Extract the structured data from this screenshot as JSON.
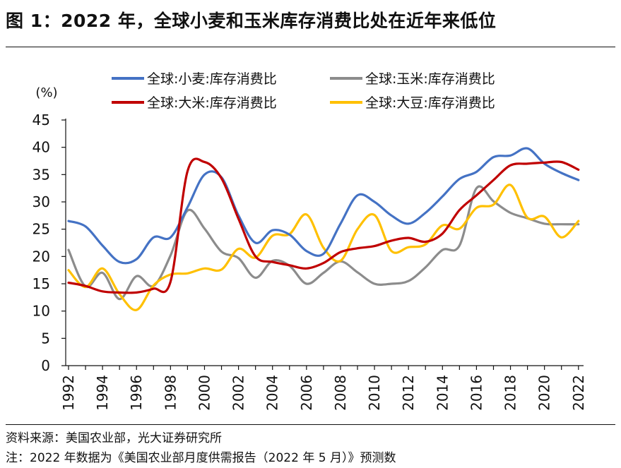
{
  "header": {
    "title": "图 1：2022 年，全球小麦和玉米库存消费比处在近年来低位"
  },
  "footer": {
    "source": "资料来源：美国农业部，光大证券研究所",
    "note": "注：2022 年数据为《美国农业部月度供需报告（2022 年 5 月）》预测数"
  },
  "chart_data": {
    "type": "line",
    "unit_label": "(%)",
    "ylim": [
      0,
      45
    ],
    "yticks": [
      0,
      5,
      10,
      15,
      20,
      25,
      30,
      35,
      40,
      45
    ],
    "xlim": [
      1992,
      2022
    ],
    "xticks": [
      "1992",
      "1994",
      "1996",
      "1998",
      "2000",
      "2002",
      "2004",
      "2006",
      "2008",
      "2010",
      "2012",
      "2014",
      "2016",
      "2018",
      "2020",
      "2022"
    ],
    "grid": false,
    "legend_position": "top",
    "series": [
      {
        "name": "全球:小麦:库存消费比",
        "color": "#4472C4",
        "x": [
          1992,
          1993,
          1994,
          1995,
          1996,
          1997,
          1998,
          1999,
          2000,
          2001,
          2002,
          2003,
          2004,
          2005,
          2006,
          2007,
          2008,
          2009,
          2010,
          2011,
          2012,
          2013,
          2014,
          2015,
          2016,
          2017,
          2018,
          2019,
          2020,
          2021,
          2022
        ],
        "values": [
          26.5,
          25.5,
          22,
          19,
          19.5,
          23.5,
          23.5,
          29,
          35,
          34.5,
          27.5,
          22.5,
          24.8,
          24,
          21,
          20.5,
          26,
          31.2,
          30,
          27.5,
          26,
          28,
          31,
          34.2,
          35.5,
          38.2,
          38.5,
          39.8,
          37,
          35.3,
          34
        ]
      },
      {
        "name": "全球:玉米:库存消费比",
        "color": "#8C8C8C",
        "x": [
          1992,
          1993,
          1994,
          1995,
          1996,
          1997,
          1998,
          1999,
          2000,
          2001,
          2002,
          2003,
          2004,
          2005,
          2006,
          2007,
          2008,
          2009,
          2010,
          2011,
          2012,
          2013,
          2014,
          2015,
          2016,
          2017,
          2018,
          2019,
          2020,
          2021,
          2022
        ],
        "values": [
          21.2,
          14.5,
          17,
          12.2,
          16.4,
          14.6,
          20.2,
          28.4,
          25.1,
          20.9,
          19.7,
          16.1,
          19.2,
          18.3,
          15,
          17,
          19.1,
          17.1,
          15,
          15,
          15.5,
          18,
          21.2,
          22,
          32.5,
          30.1,
          28,
          27,
          26,
          25.9,
          25.9
        ]
      },
      {
        "name": "全球:大米:库存消费比",
        "color": "#C00000",
        "x": [
          1992,
          1993,
          1994,
          1995,
          1996,
          1997,
          1998,
          1999,
          2000,
          2001,
          2002,
          2003,
          2004,
          2005,
          2006,
          2007,
          2008,
          2009,
          2010,
          2011,
          2012,
          2013,
          2014,
          2015,
          2016,
          2017,
          2018,
          2019,
          2020,
          2021,
          2022
        ],
        "values": [
          15.2,
          14.6,
          13.6,
          13.4,
          13.4,
          14.1,
          15.4,
          35.6,
          37.3,
          34.3,
          26.9,
          20,
          19,
          18.4,
          17.8,
          18.8,
          20.8,
          21.5,
          21.9,
          22.9,
          23.4,
          22.7,
          24.2,
          28.5,
          31.2,
          34,
          36.7,
          37,
          37.2,
          37.3,
          35.9
        ]
      },
      {
        "name": "全球:大豆:库存消费比",
        "color": "#FFC000",
        "x": [
          1992,
          1993,
          1994,
          1995,
          1996,
          1997,
          1998,
          1999,
          2000,
          2001,
          2002,
          2003,
          2004,
          2005,
          2006,
          2007,
          2008,
          2009,
          2010,
          2011,
          2012,
          2013,
          2014,
          2015,
          2016,
          2017,
          2018,
          2019,
          2020,
          2021,
          2022
        ],
        "values": [
          17.5,
          14.4,
          17.8,
          13.1,
          10.2,
          14.7,
          16.7,
          16.9,
          17.8,
          17.6,
          21.4,
          19.8,
          23.8,
          24.1,
          27.7,
          21.6,
          19.2,
          25,
          27.6,
          21,
          21.7,
          22.2,
          25.7,
          25.1,
          28.9,
          29.5,
          33.1,
          27.1,
          27.3,
          23.5,
          26.5
        ]
      }
    ]
  }
}
